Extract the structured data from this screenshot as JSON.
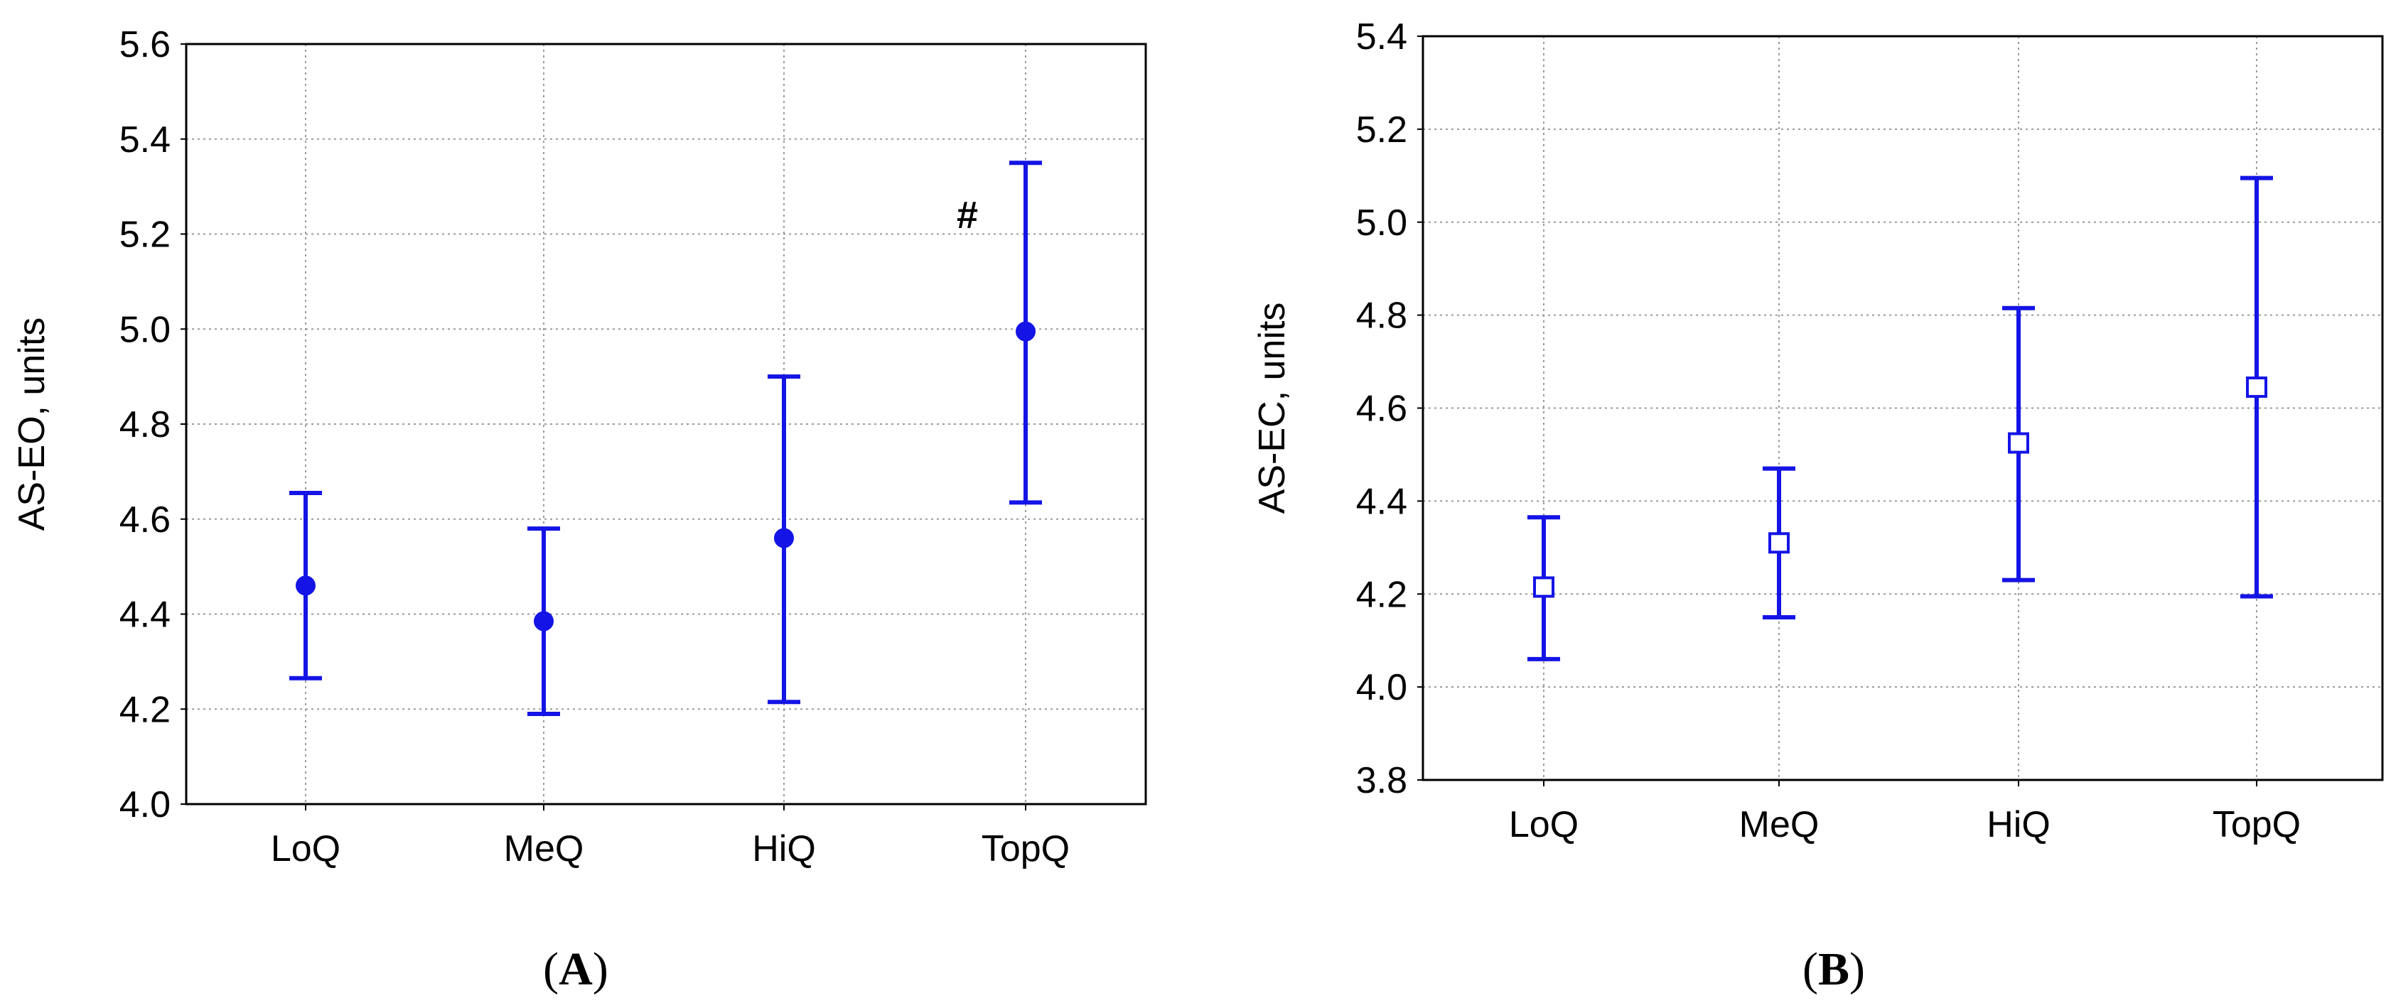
{
  "chart_data": [
    {
      "panel": "A",
      "type": "scatter",
      "title": "",
      "xlabel": "",
      "ylabel": "AS-EO, units",
      "categories": [
        "LoQ",
        "MeQ",
        "HiQ",
        "TopQ"
      ],
      "ylim": [
        4.0,
        5.6
      ],
      "yticks": [
        "4.0",
        "4.2",
        "4.4",
        "4.6",
        "4.8",
        "5.0",
        "5.2",
        "5.4",
        "5.6"
      ],
      "grid": true,
      "marker": "filled-circle",
      "color": "#1414e6",
      "series": [
        {
          "mean": [
            4.46,
            4.385,
            4.56,
            4.995
          ],
          "lower": [
            4.265,
            4.19,
            4.215,
            4.635
          ],
          "upper": [
            4.655,
            4.58,
            4.9,
            5.35
          ]
        }
      ],
      "annotations": [
        {
          "text": "#",
          "category": "TopQ",
          "y": 5.24
        }
      ]
    },
    {
      "panel": "B",
      "type": "scatter",
      "title": "",
      "xlabel": "",
      "ylabel": "AS-EC, units",
      "categories": [
        "LoQ",
        "MeQ",
        "HiQ",
        "TopQ"
      ],
      "ylim": [
        3.8,
        5.4
      ],
      "yticks": [
        "3.8",
        "4.0",
        "4.2",
        "4.4",
        "4.6",
        "4.8",
        "5.0",
        "5.2",
        "5.4"
      ],
      "grid": true,
      "marker": "open-square",
      "color": "#1414e6",
      "series": [
        {
          "mean": [
            4.215,
            4.31,
            4.525,
            4.645
          ],
          "lower": [
            4.06,
            4.15,
            4.23,
            4.195
          ],
          "upper": [
            4.365,
            4.47,
            4.815,
            5.095
          ]
        }
      ],
      "annotations": []
    }
  ],
  "panel_labels": [
    {
      "open": "(",
      "letter": "A",
      "close": ")"
    },
    {
      "open": "(",
      "letter": "B",
      "close": ")"
    }
  ]
}
